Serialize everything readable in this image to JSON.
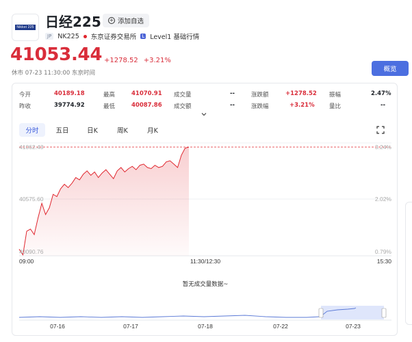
{
  "header": {
    "logo_text": "Nikkei 225",
    "name": "日经225",
    "watch_label": "添加自选",
    "market_tag": "JP",
    "code": "NK225",
    "exchange": "东京证券交易所",
    "level_badge": "L",
    "level_text": "Level1 基础行情"
  },
  "quote": {
    "price": "41053.44",
    "change": "+1278.52",
    "change_pct": "+3.21%",
    "status": "休市",
    "datetime": "07-23 11:30:00",
    "timezone": "东京时间",
    "color_up": "#d92d3a"
  },
  "overview_button": "概览",
  "stats": {
    "row1": [
      {
        "label": "今开",
        "value": "40189.18"
      },
      {
        "label": "最高",
        "value": "41070.91"
      },
      {
        "label": "成交量",
        "value": "--"
      },
      {
        "label": "涨跌额",
        "value": "+1278.52"
      },
      {
        "label": "振幅",
        "value": "2.47%"
      }
    ],
    "row2": [
      {
        "label": "昨收",
        "value": "39774.92"
      },
      {
        "label": "最低",
        "value": "40087.86"
      },
      {
        "label": "成交额",
        "value": "--"
      },
      {
        "label": "涨跌幅",
        "value": "+3.21%"
      },
      {
        "label": "量比",
        "value": "--"
      }
    ]
  },
  "tabs": [
    "分时",
    "五日",
    "日K",
    "周K",
    "月K"
  ],
  "active_tab": "分时",
  "chart_data": {
    "type": "line",
    "y_left_labels": [
      "41062.43",
      "40575.60",
      "40090.76"
    ],
    "y_right_labels": [
      "3.24%",
      "2.02%",
      "0.79%"
    ],
    "ylim": [
      40090.76,
      41062.43
    ],
    "x_labels": [
      "09:00",
      "11:30/12:30",
      "15:30"
    ],
    "series": [
      {
        "values": [
          40150,
          40100,
          40310,
          40330,
          40280,
          40430,
          40560,
          40460,
          40520,
          40640,
          40620,
          40690,
          40730,
          40700,
          40740,
          40790,
          40770,
          40820,
          40850,
          40810,
          40840,
          40790,
          40830,
          40860,
          40820,
          40780,
          40850,
          40880,
          40840,
          40870,
          40890,
          40860,
          40900,
          40910,
          40880,
          40870,
          40900,
          40880,
          40890,
          40930,
          40940,
          40910,
          40880,
          40990,
          41053,
          41062
        ]
      }
    ]
  },
  "no_volume_text": "暂无成交量数据~",
  "navigator": {
    "date_labels": [
      "07-16",
      "07-17",
      "07-18",
      "07-22",
      "07-23"
    ]
  }
}
